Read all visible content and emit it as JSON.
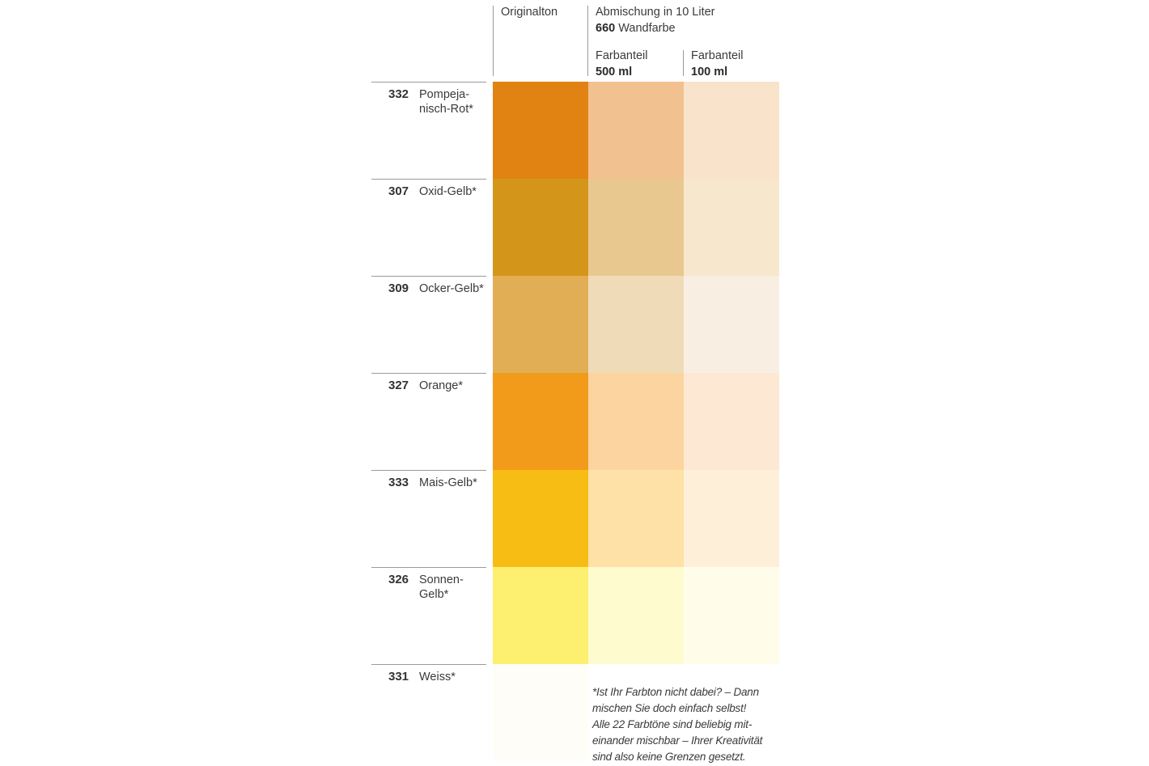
{
  "header": {
    "original_label": "Originalton",
    "mix_title": "Abmischung in 10 Liter",
    "mix_product_code": "660",
    "mix_product_name": "Wandfarbe",
    "col_500_label": "Farbanteil",
    "col_500_amount": "500 ml",
    "col_100_label": "Farbanteil",
    "col_100_amount": "100 ml"
  },
  "rows": [
    {
      "code": "332",
      "name": "Pompeja-\nnisch-Rot*",
      "colors": {
        "original": "#e08312",
        "ml500": "#f2c190",
        "ml100": "#fae3cb"
      }
    },
    {
      "code": "307",
      "name": "Oxid-Gelb*",
      "colors": {
        "original": "#d4961a",
        "ml500": "#e9c88f",
        "ml100": "#f7e7cc"
      }
    },
    {
      "code": "309",
      "name": "Ocker-Gelb*",
      "colors": {
        "original": "#e2ae55",
        "ml500": "#f0dbb9",
        "ml100": "#f8efe2"
      }
    },
    {
      "code": "327",
      "name": "Orange*",
      "colors": {
        "original": "#f29b1b",
        "ml500": "#fcd4a0",
        "ml100": "#fde8d4"
      }
    },
    {
      "code": "333",
      "name": "Mais-Gelb*",
      "colors": {
        "original": "#f8bd14",
        "ml500": "#fde1a6",
        "ml100": "#fef0d8"
      }
    },
    {
      "code": "326",
      "name": "Sonnen-\nGelb*",
      "colors": {
        "original": "#fdf070",
        "ml500": "#fefbcf",
        "ml100": "#fffdea"
      }
    },
    {
      "code": "331",
      "name": "Weiss*",
      "colors": {
        "original": "#fffdf8",
        "ml500": "#ffffff",
        "ml100": "#ffffff"
      }
    }
  ],
  "footnote": "*Ist Ihr Farbton nicht dabei? – Dann\n mischen Sie doch einfach selbst!\n Alle 22 Farbtöne sind beliebig mit-\n einander mischbar – Ihrer Kreativität\n sind also keine Grenzen gesetzt."
}
